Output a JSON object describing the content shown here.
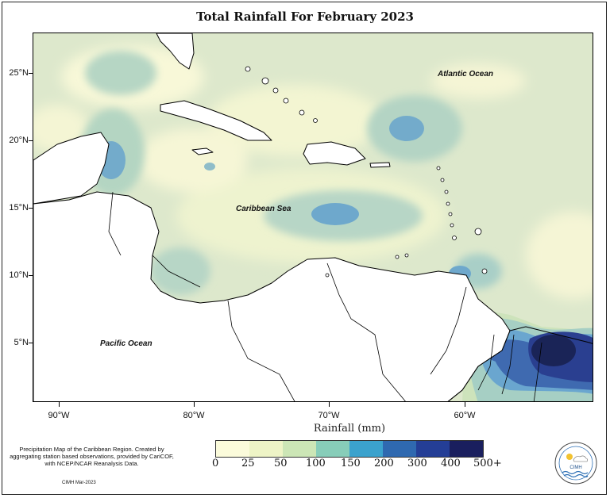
{
  "title": "Total Rainfall For February 2023",
  "map": {
    "labels": {
      "atlantic": "Atlantic Ocean",
      "caribbean": "Caribbean Sea",
      "pacific": "Pacific Ocean"
    },
    "lat_labels": [
      "25°N",
      "20°N",
      "15°N",
      "10°N",
      "5°N"
    ],
    "lon_labels": [
      "90°W",
      "80°W",
      "70°W",
      "60°W"
    ],
    "extent": {
      "lon": [
        -92,
        -50
      ],
      "lat": [
        1,
        28.5
      ]
    }
  },
  "legend": {
    "title": "Rainfall (mm)",
    "ticks": [
      "0",
      "25",
      "50",
      "100",
      "150",
      "200",
      "300",
      "400",
      "500+"
    ],
    "colors": [
      "#fbfbdb",
      "#eef4c6",
      "#cce6b6",
      "#87cdb9",
      "#3ba2cd",
      "#2f69b0",
      "#243e96",
      "#1a1f5e"
    ]
  },
  "note": "Precipitation Map of the Caribbean Region. Created by aggregating station based observations, provided by CariCOF, with NCEP/NCAR Reanalysis Data.",
  "credit": "CIMH Mar-2023",
  "logo_text": "CIMH"
}
